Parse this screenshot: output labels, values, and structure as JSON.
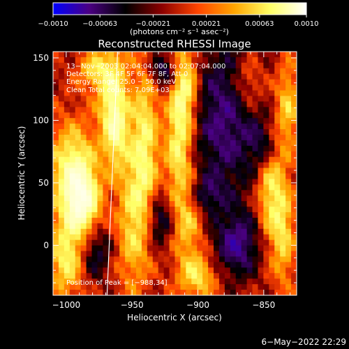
{
  "chart_data": {
    "type": "heatmap",
    "title": "Reconstructed RHESSI Image",
    "xlabel": "Heliocentric X (arcsec)",
    "ylabel": "Heliocentric Y (arcsec)",
    "xlim": [
      -1010,
      -825
    ],
    "ylim": [
      -40,
      155
    ],
    "xticks": [
      -1000,
      -950,
      -900,
      -850
    ],
    "xtick_labels": [
      "−1000",
      "−950",
      "−900",
      "−850"
    ],
    "yticks": [
      0,
      50,
      100,
      150
    ],
    "ytick_labels": [
      "0",
      "50",
      "100",
      "150"
    ],
    "colorbar": {
      "min": -0.001,
      "max": 0.001,
      "ticks": [
        -0.001,
        -0.00063,
        -0.00021,
        0.00021,
        0.00063,
        0.001
      ],
      "tick_labels": [
        "−0.0010",
        "−0.00063",
        "−0.00021",
        "0.00021",
        "0.00063",
        "0.0010"
      ],
      "unit_label": "(photons cm⁻² s⁻¹ asec⁻²)",
      "colormap": [
        "#0000ff",
        "#4b0082",
        "#000000",
        "#8b0000",
        "#ff4500",
        "#ffa500",
        "#ffff66",
        "#ffffff"
      ]
    },
    "header_lines": [
      "13−Nov−2003 02:04:04.000 to 02:07:04.000",
      "Detectors: 3F 4F 5F 6F 7F 8F, Att 0",
      "Energy Range: 25.0 − 50.0 keV",
      "Clean     Total counts: 7.09E+03"
    ],
    "peak_label": "Position of Peak = [−988,34]",
    "peak_position": [
      -988,
      34
    ],
    "limb_line": [
      [
        -969,
        -40
      ],
      [
        -961,
        155
      ]
    ],
    "hotspots": [
      {
        "x": -988,
        "y": 34,
        "intensity": 1.0,
        "sx": 9,
        "sy": 18
      },
      {
        "x": -995,
        "y": 60,
        "intensity": 0.85,
        "sx": 12,
        "sy": 25
      },
      {
        "x": -1000,
        "y": -10,
        "intensity": 0.7,
        "sx": 9,
        "sy": 22
      },
      {
        "x": -965,
        "y": 125,
        "intensity": 0.7,
        "sx": 8,
        "sy": 28
      },
      {
        "x": -962,
        "y": 90,
        "intensity": 0.6,
        "sx": 7,
        "sy": 22
      },
      {
        "x": -950,
        "y": 20,
        "intensity": 0.55,
        "sx": 8,
        "sy": 40
      },
      {
        "x": -940,
        "y": 80,
        "intensity": 0.7,
        "sx": 7,
        "sy": 50
      },
      {
        "x": -910,
        "y": 130,
        "intensity": 0.85,
        "sx": 7,
        "sy": 25
      },
      {
        "x": -915,
        "y": 80,
        "intensity": 0.7,
        "sx": 7,
        "sy": 30
      },
      {
        "x": -908,
        "y": 20,
        "intensity": 0.55,
        "sx": 8,
        "sy": 25
      },
      {
        "x": -900,
        "y": -25,
        "intensity": 0.6,
        "sx": 10,
        "sy": 12
      },
      {
        "x": -862,
        "y": 130,
        "intensity": 0.4,
        "sx": 8,
        "sy": 15
      },
      {
        "x": -845,
        "y": 45,
        "intensity": 0.65,
        "sx": 7,
        "sy": 30
      },
      {
        "x": -835,
        "y": 10,
        "intensity": 0.55,
        "sx": 6,
        "sy": 30
      },
      {
        "x": -832,
        "y": 110,
        "intensity": 0.55,
        "sx": 6,
        "sy": 25
      },
      {
        "x": -980,
        "y": 140,
        "intensity": 0.5,
        "sx": 8,
        "sy": 10
      }
    ],
    "coldspots": [
      {
        "x": -925,
        "y": 140,
        "intensity": 0.55,
        "sx": 10,
        "sy": 10
      },
      {
        "x": -880,
        "y": 100,
        "intensity": 0.6,
        "sx": 18,
        "sy": 45
      },
      {
        "x": -870,
        "y": 0,
        "intensity": 0.65,
        "sx": 12,
        "sy": 18
      },
      {
        "x": -930,
        "y": 20,
        "intensity": 0.5,
        "sx": 8,
        "sy": 15
      },
      {
        "x": -978,
        "y": -5,
        "intensity": 0.45,
        "sx": 8,
        "sy": 15
      },
      {
        "x": -850,
        "y": 80,
        "intensity": 0.45,
        "sx": 8,
        "sy": 15
      },
      {
        "x": -895,
        "y": 40,
        "intensity": 0.4,
        "sx": 10,
        "sy": 10
      }
    ]
  },
  "footer": {
    "timestamp": "6−May−2022 22:29"
  }
}
